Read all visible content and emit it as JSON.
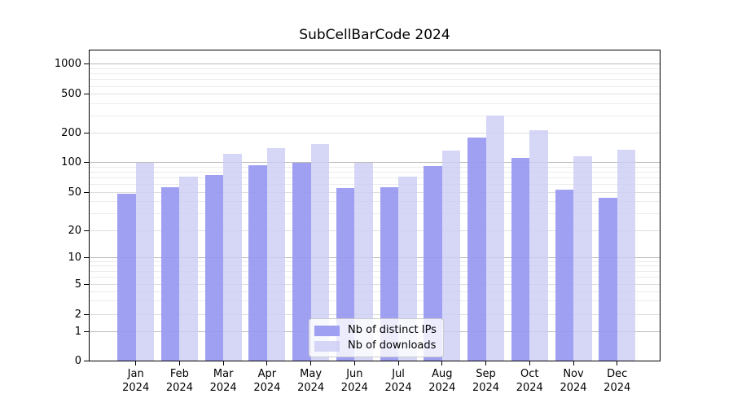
{
  "figure": {
    "background": "#ffffff"
  },
  "chart_data": {
    "type": "bar",
    "title": "SubCellBarCode 2024",
    "x_categories": [
      "Jan",
      "Feb",
      "Mar",
      "Apr",
      "May",
      "Jun",
      "Jul",
      "Aug",
      "Sep",
      "Oct",
      "Nov",
      "Dec"
    ],
    "x_year_label": "2024",
    "series": [
      {
        "name": "Nb of distinct IPs",
        "color": "#9898f2",
        "values": [
          49,
          57,
          75,
          95,
          100,
          56,
          57,
          92,
          180,
          112,
          53,
          44
        ]
      },
      {
        "name": "Nb of downloads",
        "color": "#ccccf5",
        "values": [
          100,
          73,
          124,
          140,
          155,
          100,
          73,
          133,
          300,
          212,
          117,
          135
        ]
      }
    ],
    "y_scale": "symlog",
    "y_ticks": [
      0,
      1,
      2,
      5,
      10,
      20,
      50,
      100,
      200,
      500,
      1000
    ],
    "ylim": [
      0,
      1380
    ],
    "grid": true,
    "legend_position": "lower center",
    "colors": {
      "grid_major": "#bcbcbc",
      "grid_mid": "#dedede",
      "grid_minor": "#ececec",
      "axis": "#000000",
      "text": "#000000"
    }
  }
}
